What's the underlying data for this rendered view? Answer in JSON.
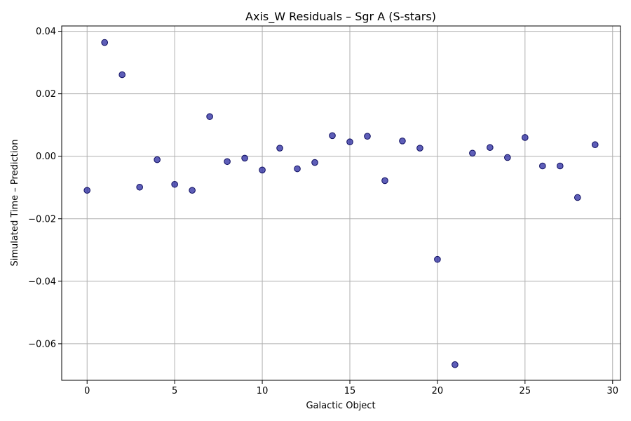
{
  "chart_data": {
    "type": "scatter",
    "title": "Axis_W Residuals – Sgr A (S-stars)",
    "xlabel": "Galactic Object",
    "ylabel": "Simulated Time – Prediction",
    "xlim": [
      -1.45,
      30.45
    ],
    "ylim": [
      -0.0717,
      0.0417
    ],
    "xticks": [
      0,
      5,
      10,
      15,
      20,
      25,
      30
    ],
    "xtick_labels": [
      "0",
      "5",
      "10",
      "15",
      "20",
      "25",
      "30"
    ],
    "yticks": [
      -0.06,
      -0.04,
      -0.02,
      0.0,
      0.02,
      0.04
    ],
    "ytick_labels": [
      "−0.06",
      "−0.04",
      "−0.02",
      "0.00",
      "0.02",
      "0.04"
    ],
    "grid": true,
    "color": "#1a1a9a",
    "x": [
      0,
      1,
      2,
      3,
      4,
      5,
      6,
      7,
      8,
      9,
      10,
      11,
      12,
      13,
      14,
      15,
      16,
      17,
      18,
      19,
      20,
      21,
      22,
      23,
      24,
      25,
      26,
      27,
      28,
      29
    ],
    "y": [
      -0.0109,
      0.0364,
      0.0261,
      -0.0099,
      -0.0011,
      -0.009,
      -0.0109,
      0.0127,
      -0.0017,
      -0.0006,
      -0.0044,
      0.0026,
      -0.004,
      -0.002,
      0.0066,
      0.0046,
      0.0064,
      -0.0078,
      0.0049,
      0.0026,
      -0.033,
      -0.0667,
      0.001,
      0.0028,
      -0.0004,
      0.006,
      -0.0031,
      -0.0031,
      -0.0132,
      0.0037
    ]
  }
}
